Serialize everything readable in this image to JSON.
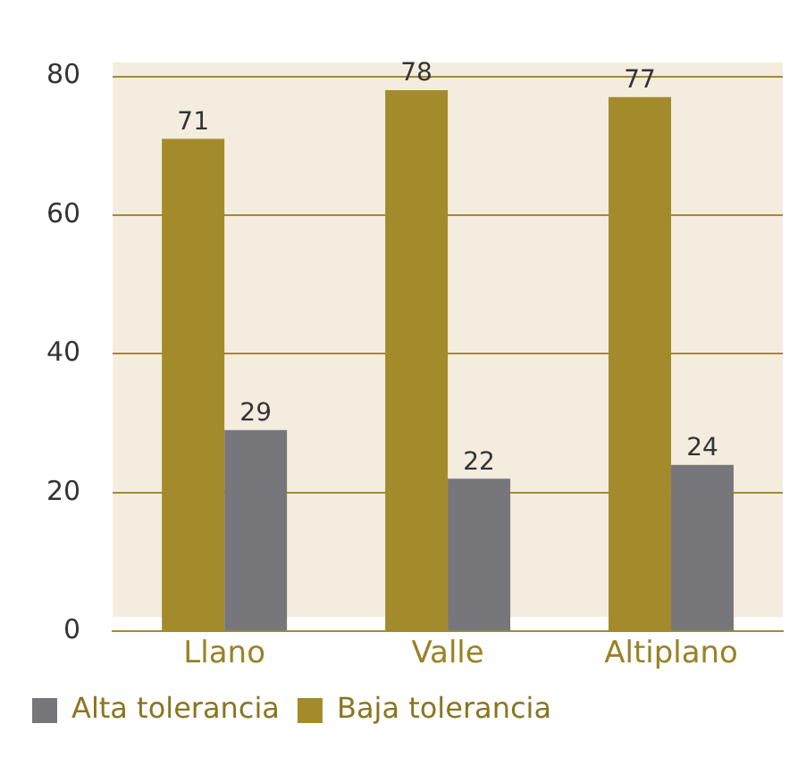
{
  "chart_data": {
    "type": "bar",
    "categories": [
      "Llano",
      "Valle",
      "Altiplano"
    ],
    "series": [
      {
        "name": "Baja tolerancia",
        "color": "#a38b2c",
        "values": [
          71,
          78,
          77
        ]
      },
      {
        "name": "Alta tolerancia",
        "color": "#77777b",
        "values": [
          29,
          22,
          24
        ]
      }
    ],
    "ylim": [
      0,
      82
    ],
    "yticks": [
      0,
      20,
      40,
      60,
      80
    ],
    "grid": "y",
    "legend": "bottom left",
    "data_labels": true
  }
}
